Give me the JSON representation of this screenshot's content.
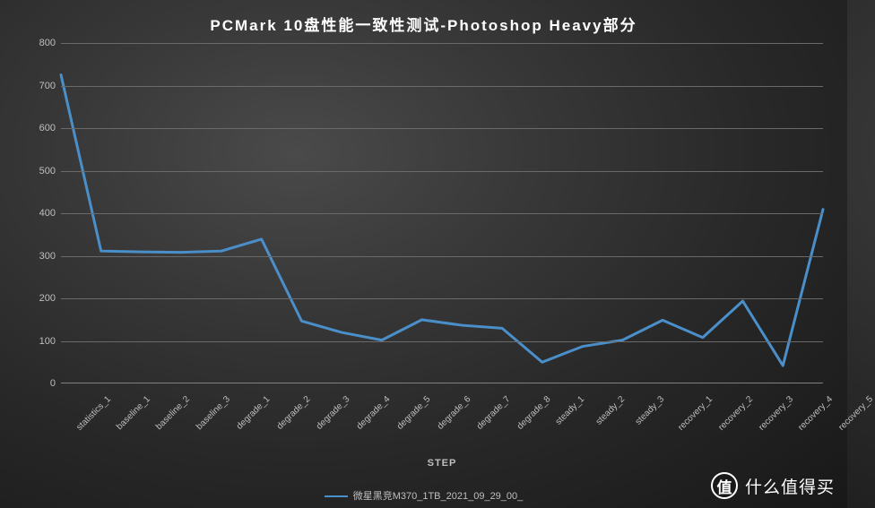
{
  "title": "PCMark 10盘性能一致性测试-Photoshop Heavy部分",
  "title_fontsize": 17,
  "chart": {
    "type": "line",
    "background": "radial-dark",
    "line_color": "#4a8fc9",
    "line_width": 3,
    "grid_color": "#6a6a6a",
    "axis_text_color": "#bfbfbf",
    "x_axis_title": "STEP",
    "ylim": [
      0,
      800
    ],
    "ytick_step": 100,
    "y_ticks": [
      0,
      100,
      200,
      300,
      400,
      500,
      600,
      700,
      800
    ],
    "categories": [
      "statistics_1",
      "baseline_1",
      "baseline_2",
      "baseline_3",
      "degrade_1",
      "degrade_2",
      "degrade_3",
      "degrade_4",
      "degrade_5",
      "degrade_6",
      "degrade_7",
      "degrade_8",
      "steady_1",
      "steady_2",
      "steady_3",
      "recovery_1",
      "recovery_2",
      "recovery_3",
      "recovery_4",
      "recovery_5"
    ],
    "values": [
      725,
      310,
      308,
      307,
      310,
      338,
      145,
      118,
      100,
      148,
      135,
      128,
      48,
      85,
      100,
      147,
      106,
      192,
      40,
      408
    ],
    "legend_label": "微星黑竞M370_1TB_2021_09_29_00_"
  },
  "watermark": {
    "badge": "值",
    "text": "什么值得买"
  }
}
